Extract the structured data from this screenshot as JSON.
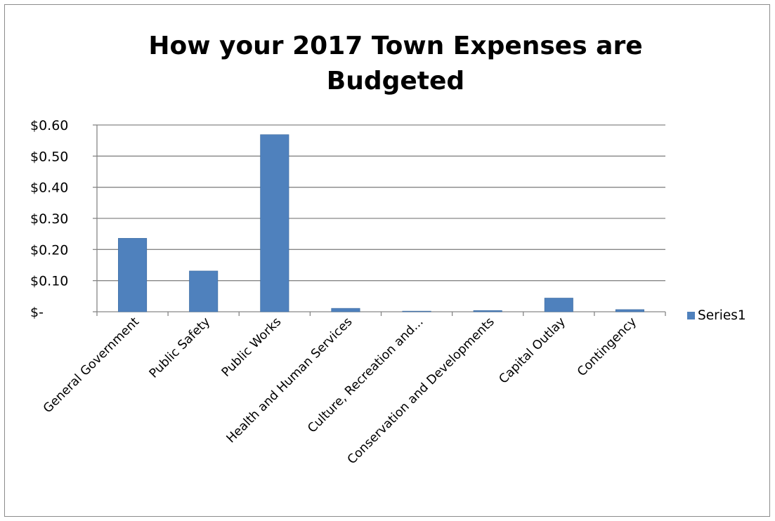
{
  "chart_data": {
    "type": "bar",
    "title_lines": [
      "How your 2017 Town Expenses are",
      "Budgeted"
    ],
    "categories": [
      "General Government",
      "Public Safety",
      "Public Works",
      "Health and Human Services",
      "Culture, Recreation and...",
      "Conservation and Developments",
      "Capital Outlay",
      "Contingency"
    ],
    "series": [
      {
        "name": "Series1",
        "values": [
          0.236,
          0.131,
          0.569,
          0.011,
          0.002,
          0.004,
          0.044,
          0.007
        ]
      }
    ],
    "ylim": [
      0,
      0.6
    ],
    "y_ticks": [
      {
        "value": 0.0,
        "label": "$-"
      },
      {
        "value": 0.1,
        "label": "$0.10"
      },
      {
        "value": 0.2,
        "label": "$0.20"
      },
      {
        "value": 0.3,
        "label": "$0.30"
      },
      {
        "value": 0.4,
        "label": "$0.40"
      },
      {
        "value": 0.5,
        "label": "$0.50"
      },
      {
        "value": 0.6,
        "label": "$0.60"
      }
    ],
    "grid": true,
    "legend_position": "right",
    "colors": {
      "bar": "#4F81BD",
      "bar_border": "#3C6A9E",
      "grid": "#868686",
      "axis": "#868686"
    }
  }
}
